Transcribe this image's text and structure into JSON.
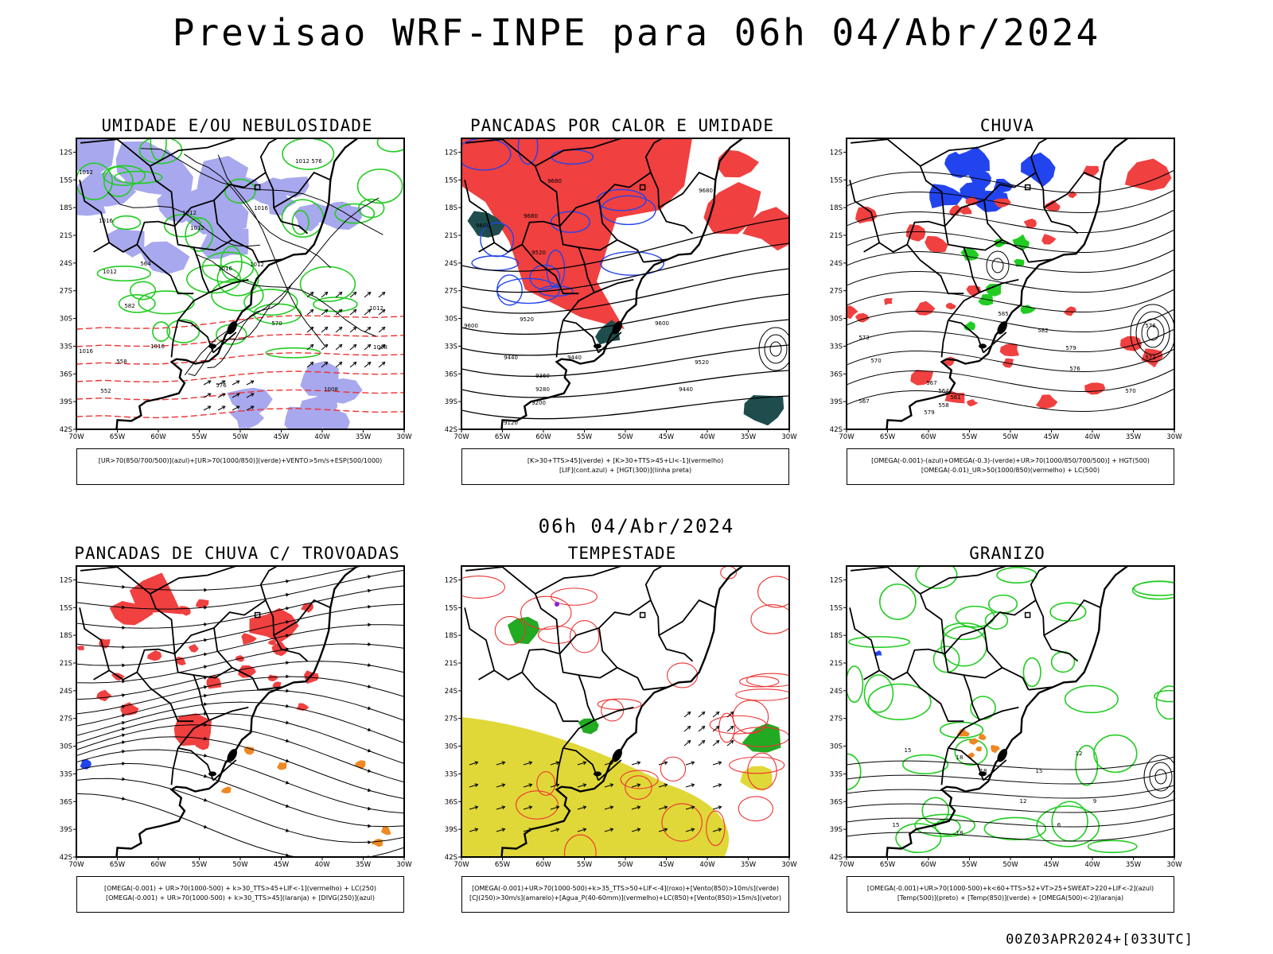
{
  "main_title": "Previsao WRF-INPE  para 06h 04/Abr/2024",
  "mid_title": "06h 04/Abr/2024",
  "footer": "00Z03APR2024+[033UTC]",
  "lat_labels": [
    "12S",
    "15S",
    "18S",
    "21S",
    "24S",
    "27S",
    "30S",
    "33S",
    "36S",
    "39S",
    "42S"
  ],
  "lon_labels": [
    "70W",
    "65W",
    "60W",
    "55W",
    "50W",
    "45W",
    "40W",
    "35W",
    "30W"
  ],
  "panels": [
    {
      "title": "UMIDADE E/OU NEBULOSIDADE",
      "legend": [
        "[UR>70(850/700/500)](azul)+[UR>70(1000/850)](verde)+VENTO>5m/s+ESP(500/1000)"
      ],
      "labels": [
        "1012",
        "1012",
        "1016",
        "1016",
        "1012",
        "1012",
        "1016",
        "1012",
        "1016",
        "1016",
        "1008",
        "1008",
        "1012",
        "1012",
        "576",
        "564",
        "558",
        "552",
        "570",
        "576",
        "582"
      ]
    },
    {
      "title": "PANCADAS POR CALOR E UMIDADE",
      "legend": [
        "[K>30+TTS>45](verde) + [K>30+TTS>45+LI<-1](vermelho)",
        "[LIF](cont.azul) + [HGT(300)](linha preta)"
      ],
      "labels": [
        "9680",
        "9680",
        "9600",
        "9680",
        "9520",
        "9600",
        "9520",
        "9600",
        "9440",
        "9440",
        "9520",
        "9360",
        "9440",
        "9280",
        "9200",
        "9120"
      ]
    },
    {
      "title": "CHUVA",
      "legend": [
        "[OMEGA(-0.001)-(azul)+OMEGA(-0.3)-(verde)+UR>70(1000/850/700/500)] + HGT(500)",
        "[OMEGA(-0.01)_UR>50(1000/850)(vermelho) + LC(500)"
      ],
      "labels": [
        "585",
        "582",
        "579",
        "576",
        "573",
        "570",
        "567",
        "564",
        "561",
        "558",
        "579",
        "576",
        "573",
        "570",
        "567"
      ]
    },
    {
      "title": "PANCADAS DE CHUVA C/ TROVOADAS",
      "legend": [
        "[OMEGA(-0.001) + UR>70(1000-500) + k>30_TTS>45+LIF<-1](vermelho) + LC(250)",
        "[OMEGA(-0.001) + UR>70(1000-500) + k>30_TTS>45](laranja) + [DIVG(250)](azul)"
      ],
      "labels": []
    },
    {
      "title": "TEMPESTADE",
      "legend": [
        "[OMEGA(-0.001)+UR>70(1000-500)+k>35_TTS>50+LIF<-4](roxo)+[Vento(850)>10m/s](verde)",
        "[CJ(250)>30m/s](amarelo)+[Agua_P(40-60mm)](vermelho)+LC(850)+[Vento(850)>15m/s](vetor)"
      ],
      "labels": []
    },
    {
      "title": "GRANIZO",
      "legend": [
        "[OMEGA(-0.001)+UR>70(1000-500)+k<60+TTS>52+VT>25+SWEAT>220+LIF<-2](azul)",
        "[Temp(500)](preto) + [Temp(850)](verde) + [OMEGA(500)<-2](laranja)"
      ],
      "labels": [
        "15",
        "18",
        "18",
        "15",
        "12",
        "9",
        "15",
        "18",
        "12",
        "6"
      ]
    }
  ],
  "colors": {
    "blue_fill": "#a8a8ee",
    "green_line": "#22cc22",
    "red_fill": "#f04040",
    "red_line": "#ee3333",
    "blue_line": "#2244ee",
    "dark_teal": "#1f4d4d",
    "yellow_fill": "#e0d838",
    "orange": "#ee8822",
    "purple": "#8822cc"
  }
}
